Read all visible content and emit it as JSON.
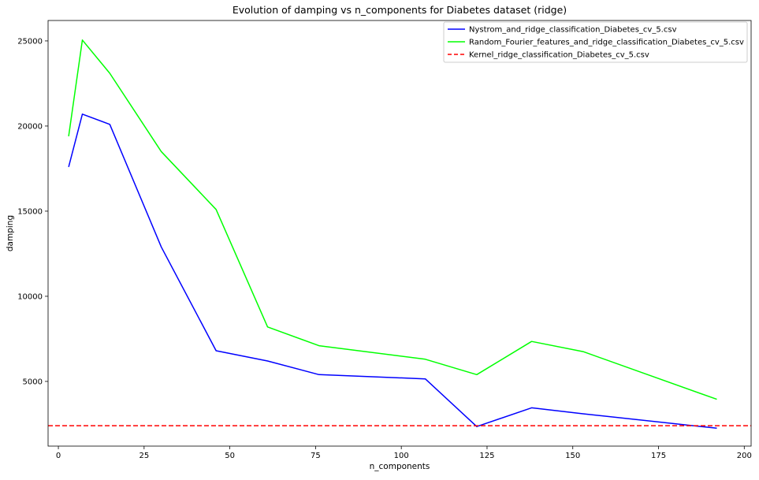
{
  "chart_data": {
    "type": "line",
    "title": "Evolution of damping vs n_components for Diabetes dataset (ridge)",
    "xlabel": "n_components",
    "ylabel": "damping",
    "xlim": [
      -3,
      202
    ],
    "ylim": [
      1200,
      26200
    ],
    "xticks": [
      0,
      25,
      50,
      75,
      100,
      125,
      150,
      175,
      200
    ],
    "yticks": [
      5000,
      10000,
      15000,
      20000,
      25000
    ],
    "grid": false,
    "legend_position": "top-right",
    "series": [
      {
        "name": "Nystrom_and_ridge_classification_Diabetes_cv_5.csv",
        "color": "#0000ff",
        "style": "solid",
        "x": [
          3,
          7,
          15,
          30,
          46,
          61,
          76,
          107,
          122,
          138,
          153,
          192
        ],
        "y": [
          17600,
          20700,
          20100,
          12900,
          6800,
          6200,
          5400,
          5150,
          2350,
          3450,
          3100,
          2250
        ]
      },
      {
        "name": "Random_Fourier_features_and_ridge_classification_Diabetes_cv_5.csv",
        "color": "#00ff00",
        "style": "solid",
        "x": [
          3,
          7,
          15,
          30,
          46,
          61,
          76,
          107,
          122,
          138,
          153,
          192
        ],
        "y": [
          19400,
          25050,
          23100,
          18500,
          15100,
          8200,
          7100,
          6300,
          5400,
          7350,
          6750,
          3950
        ]
      },
      {
        "name": "Kernel_ridge_classification_Diabetes_cv_5.csv",
        "color": "#ff0000",
        "style": "dashed",
        "hline": 2400
      }
    ]
  }
}
